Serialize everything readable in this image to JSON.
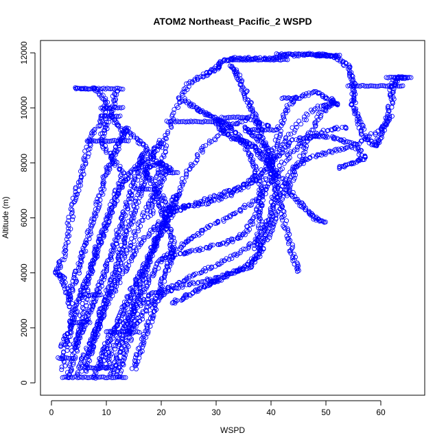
{
  "chart_data": {
    "type": "scatter",
    "title": "ATOM2 Northeast_Pacific_2 WSPD",
    "xlabel": "WSPD",
    "ylabel": "Altitude (m)",
    "xlim": [
      -2,
      68
    ],
    "ylim": [
      -450,
      12450
    ],
    "x_ticks": [
      0,
      10,
      20,
      30,
      40,
      50,
      60
    ],
    "y_ticks": [
      0,
      2000,
      4000,
      6000,
      8000,
      10000,
      12000
    ],
    "grid": false,
    "legend": "none",
    "marker": "open-circle",
    "color": "#0000ff",
    "traces": [
      [
        [
          3,
          200
        ],
        [
          4,
          900
        ],
        [
          5,
          1800
        ],
        [
          6,
          2800
        ],
        [
          7,
          3800
        ],
        [
          8,
          4800
        ],
        [
          10,
          5800
        ],
        [
          12,
          6800
        ],
        [
          13,
          7600
        ],
        [
          11,
          8200
        ],
        [
          9,
          8800
        ],
        [
          10,
          9400
        ],
        [
          11,
          10000
        ],
        [
          12,
          10700
        ]
      ],
      [
        [
          5,
          300
        ],
        [
          6,
          1000
        ],
        [
          8,
          1800
        ],
        [
          9,
          2600
        ],
        [
          11,
          3500
        ],
        [
          13,
          4400
        ],
        [
          15,
          5300
        ],
        [
          17,
          6200
        ],
        [
          19,
          7000
        ],
        [
          21,
          7700
        ],
        [
          18,
          8300
        ],
        [
          16,
          8800
        ],
        [
          13,
          9200
        ],
        [
          11,
          9700
        ]
      ],
      [
        [
          2,
          500
        ],
        [
          3,
          1500
        ],
        [
          4,
          2500
        ],
        [
          3,
          3200
        ],
        [
          2,
          3800
        ],
        [
          1,
          4000
        ],
        [
          2,
          4500
        ],
        [
          3,
          5500
        ],
        [
          4,
          6500
        ],
        [
          5,
          7200
        ],
        [
          6,
          8000
        ],
        [
          7,
          8800
        ],
        [
          9,
          9500
        ],
        [
          10,
          10200
        ],
        [
          8,
          10700
        ],
        [
          4,
          10700
        ]
      ],
      [
        [
          8,
          200
        ],
        [
          9,
          900
        ],
        [
          11,
          1700
        ],
        [
          13,
          2600
        ],
        [
          15,
          3500
        ],
        [
          17,
          4300
        ],
        [
          19,
          5200
        ],
        [
          21,
          6000
        ],
        [
          23,
          6900
        ],
        [
          25,
          7800
        ],
        [
          28,
          8600
        ],
        [
          32,
          9300
        ],
        [
          36,
          9600
        ],
        [
          40,
          9300
        ]
      ],
      [
        [
          9,
          600
        ],
        [
          10,
          1400
        ],
        [
          12,
          2200
        ],
        [
          14,
          3000
        ],
        [
          16,
          3800
        ],
        [
          18,
          4600
        ],
        [
          20,
          5400
        ],
        [
          22,
          6200
        ],
        [
          20,
          6800
        ],
        [
          18,
          7400
        ],
        [
          17,
          7800
        ],
        [
          20,
          8000
        ],
        [
          22,
          7700
        ]
      ],
      [
        [
          12,
          200
        ],
        [
          13,
          800
        ],
        [
          14,
          1500
        ],
        [
          15,
          2300
        ],
        [
          16,
          3100
        ],
        [
          18,
          3800
        ],
        [
          20,
          4500
        ],
        [
          23,
          4900
        ],
        [
          26,
          5300
        ],
        [
          29,
          5700
        ],
        [
          33,
          6100
        ],
        [
          37,
          6600
        ],
        [
          40,
          7300
        ],
        [
          43,
          8200
        ],
        [
          46,
          8800
        ],
        [
          50,
          9200
        ],
        [
          54,
          9300
        ]
      ],
      [
        [
          6,
          400
        ],
        [
          7,
          1100
        ],
        [
          8,
          1900
        ],
        [
          10,
          2700
        ],
        [
          12,
          3600
        ],
        [
          14,
          4400
        ],
        [
          16,
          5100
        ],
        [
          19,
          5700
        ],
        [
          22,
          6200
        ],
        [
          26,
          6500
        ],
        [
          30,
          6800
        ],
        [
          34,
          7100
        ],
        [
          38,
          7600
        ],
        [
          41,
          8300
        ],
        [
          44,
          9200
        ],
        [
          48,
          10000
        ],
        [
          52,
          10200
        ]
      ],
      [
        [
          10,
          500
        ],
        [
          11,
          1200
        ],
        [
          13,
          2000
        ],
        [
          15,
          2700
        ],
        [
          18,
          3200
        ],
        [
          22,
          3500
        ],
        [
          26,
          3900
        ],
        [
          30,
          4300
        ],
        [
          34,
          4700
        ],
        [
          38,
          5300
        ],
        [
          40,
          6000
        ],
        [
          42,
          7000
        ],
        [
          44,
          7800
        ],
        [
          47,
          8200
        ],
        [
          51,
          8400
        ],
        [
          55,
          8600
        ],
        [
          60,
          9200
        ],
        [
          62,
          9700
        ]
      ],
      [
        [
          14,
          1800
        ],
        [
          16,
          2300
        ],
        [
          18,
          2900
        ],
        [
          21,
          3300
        ],
        [
          25,
          3600
        ],
        [
          30,
          3800
        ],
        [
          34,
          4100
        ],
        [
          37,
          4500
        ],
        [
          39,
          5200
        ],
        [
          41,
          6000
        ],
        [
          43,
          7000
        ],
        [
          45,
          8000
        ],
        [
          47,
          9000
        ],
        [
          49,
          9800
        ],
        [
          51,
          10200
        ]
      ],
      [
        [
          20,
          6300
        ],
        [
          24,
          6400
        ],
        [
          28,
          6500
        ],
        [
          32,
          6800
        ],
        [
          35,
          7100
        ],
        [
          38,
          7500
        ],
        [
          41,
          8200
        ],
        [
          44,
          8800
        ],
        [
          48,
          9000
        ],
        [
          52,
          8900
        ],
        [
          55,
          8700
        ],
        [
          57,
          8200
        ],
        [
          55,
          8000
        ],
        [
          52,
          7800
        ]
      ],
      [
        [
          20,
          4500
        ],
        [
          24,
          4700
        ],
        [
          28,
          4900
        ],
        [
          32,
          5100
        ],
        [
          35,
          5400
        ],
        [
          37,
          6000
        ],
        [
          39,
          7000
        ],
        [
          40,
          8000
        ],
        [
          41,
          8800
        ],
        [
          42,
          9600
        ],
        [
          44,
          10300
        ],
        [
          48,
          10600
        ],
        [
          51,
          10300
        ],
        [
          52,
          10100
        ]
      ],
      [
        [
          22,
          2900
        ],
        [
          25,
          3200
        ],
        [
          28,
          3500
        ],
        [
          30,
          3700
        ],
        [
          33,
          4000
        ],
        [
          36,
          4200
        ],
        [
          38,
          4700
        ],
        [
          39,
          5400
        ],
        [
          40,
          6300
        ],
        [
          41,
          7200
        ],
        [
          40,
          8000
        ],
        [
          39,
          8600
        ],
        [
          37,
          9000
        ],
        [
          35,
          9300
        ]
      ],
      [
        [
          18,
          6000
        ],
        [
          19,
          7000
        ],
        [
          20,
          8000
        ],
        [
          21,
          9000
        ],
        [
          23,
          10200
        ],
        [
          25,
          10900
        ],
        [
          28,
          11200
        ],
        [
          30,
          11400
        ],
        [
          31,
          11700
        ],
        [
          33,
          11800
        ],
        [
          36,
          11800
        ],
        [
          40,
          11800
        ],
        [
          43,
          11900
        ],
        [
          47,
          11950
        ],
        [
          50,
          11900
        ],
        [
          52,
          11850
        ],
        [
          54,
          11500
        ],
        [
          55,
          11000
        ],
        [
          55,
          10500
        ],
        [
          55,
          10000
        ],
        [
          56,
          9500
        ],
        [
          57,
          9000
        ],
        [
          59,
          8600
        ],
        [
          60,
          9000
        ],
        [
          61,
          9600
        ],
        [
          62,
          10300
        ],
        [
          62,
          10800
        ],
        [
          63,
          11100
        ],
        [
          65,
          11100
        ]
      ],
      [
        [
          33,
          11500
        ],
        [
          34,
          11200
        ],
        [
          35,
          10700
        ],
        [
          36,
          10200
        ],
        [
          37,
          9700
        ],
        [
          38,
          9200
        ],
        [
          39,
          8500
        ],
        [
          40,
          7800
        ],
        [
          41,
          7000
        ],
        [
          42,
          6200
        ],
        [
          43,
          5400
        ],
        [
          44,
          4600
        ],
        [
          45,
          4000
        ]
      ],
      [
        [
          30,
          9500
        ],
        [
          31,
          9200
        ],
        [
          33,
          8900
        ],
        [
          35,
          8800
        ],
        [
          37,
          8600
        ],
        [
          38,
          8300
        ],
        [
          40,
          7900
        ],
        [
          42,
          7400
        ],
        [
          44,
          6800
        ],
        [
          46,
          6400
        ],
        [
          48,
          6000
        ],
        [
          50,
          5800
        ]
      ],
      [
        [
          24,
          10300
        ],
        [
          26,
          10000
        ],
        [
          28,
          9800
        ],
        [
          30,
          9600
        ],
        [
          32,
          9400
        ],
        [
          34,
          9000
        ],
        [
          36,
          8400
        ],
        [
          37,
          7800
        ],
        [
          38,
          7100
        ],
        [
          38,
          6400
        ],
        [
          38,
          5600
        ],
        [
          37,
          4800
        ]
      ],
      [
        [
          2,
          1300
        ],
        [
          3,
          1800
        ],
        [
          4,
          2400
        ],
        [
          5,
          3000
        ],
        [
          6,
          3500
        ],
        [
          7,
          4000
        ],
        [
          8,
          4600
        ],
        [
          9,
          5200
        ],
        [
          10,
          5800
        ],
        [
          11,
          6400
        ],
        [
          12,
          7000
        ],
        [
          14,
          7500
        ],
        [
          16,
          8000
        ],
        [
          17,
          8400
        ]
      ],
      [
        [
          7,
          1000
        ],
        [
          8,
          1700
        ],
        [
          9,
          2400
        ],
        [
          10,
          3100
        ],
        [
          11,
          3800
        ],
        [
          12,
          4500
        ],
        [
          13,
          5000
        ],
        [
          14,
          5600
        ],
        [
          15,
          6200
        ],
        [
          16,
          6900
        ],
        [
          17,
          7500
        ],
        [
          18,
          8100
        ],
        [
          19,
          8500
        ],
        [
          20,
          8800
        ]
      ],
      [
        [
          11,
          300
        ],
        [
          12,
          900
        ],
        [
          13,
          1500
        ],
        [
          14,
          2100
        ],
        [
          15,
          2800
        ],
        [
          16,
          3400
        ],
        [
          17,
          4000
        ],
        [
          18,
          4600
        ],
        [
          19,
          5100
        ],
        [
          20,
          5600
        ],
        [
          21,
          6100
        ],
        [
          22,
          6500
        ],
        [
          23,
          6900
        ]
      ],
      [
        [
          4,
          1200
        ],
        [
          5,
          1700
        ],
        [
          6,
          2100
        ],
        [
          7,
          2600
        ],
        [
          8,
          3100
        ],
        [
          9,
          3600
        ],
        [
          10,
          4200
        ],
        [
          11,
          4800
        ],
        [
          12,
          5400
        ],
        [
          13,
          6000
        ],
        [
          14,
          6600
        ],
        [
          15,
          7200
        ],
        [
          16,
          7800
        ],
        [
          17,
          8200
        ]
      ],
      [
        [
          3,
          3000
        ],
        [
          4,
          3600
        ],
        [
          5,
          4200
        ],
        [
          6,
          4800
        ],
        [
          7,
          5500
        ],
        [
          8,
          6200
        ],
        [
          9,
          6900
        ],
        [
          10,
          7600
        ],
        [
          11,
          8100
        ],
        [
          12,
          8600
        ],
        [
          13,
          9000
        ],
        [
          14,
          9300
        ]
      ],
      [
        [
          15,
          500
        ],
        [
          16,
          1100
        ],
        [
          17,
          1700
        ],
        [
          18,
          2300
        ],
        [
          19,
          2900
        ],
        [
          20,
          3500
        ],
        [
          21,
          4100
        ],
        [
          22,
          4600
        ],
        [
          22,
          5200
        ],
        [
          21,
          5800
        ],
        [
          20,
          6400
        ],
        [
          19,
          7000
        ]
      ]
    ],
    "level_runs": [
      {
        "alt": 10700,
        "x": [
          4.5,
          13
        ]
      },
      {
        "alt": 10000,
        "x": [
          9,
          13
        ]
      },
      {
        "alt": 9700,
        "x": [
          9,
          12.5
        ]
      },
      {
        "alt": 8800,
        "x": [
          6.5,
          14
        ]
      },
      {
        "alt": 7650,
        "x": [
          19.5,
          23
        ]
      },
      {
        "alt": 7050,
        "x": [
          15.5,
          18
        ]
      },
      {
        "alt": 3200,
        "x": [
          5.5,
          9
        ]
      },
      {
        "alt": 2200,
        "x": [
          3.5,
          7
        ]
      },
      {
        "alt": 1850,
        "x": [
          10,
          16
        ]
      },
      {
        "alt": 900,
        "x": [
          1.2,
          4
        ]
      },
      {
        "alt": 550,
        "x": [
          6,
          11
        ]
      },
      {
        "alt": 200,
        "x": [
          2,
          13.5
        ]
      },
      {
        "alt": 11750,
        "x": [
          33,
          43
        ]
      },
      {
        "alt": 11950,
        "x": [
          41,
          50
        ]
      },
      {
        "alt": 11900,
        "x": [
          48,
          52.5
        ]
      },
      {
        "alt": 9500,
        "x": [
          21,
          32
        ]
      },
      {
        "alt": 9650,
        "x": [
          31,
          36
        ]
      },
      {
        "alt": 9200,
        "x": [
          36,
          41
        ]
      },
      {
        "alt": 10350,
        "x": [
          42,
          45
        ]
      },
      {
        "alt": 10800,
        "x": [
          54,
          64
        ]
      },
      {
        "alt": 11100,
        "x": [
          61,
          65.5
        ]
      },
      {
        "alt": 3700,
        "x": [
          29,
          30.5
        ]
      }
    ]
  }
}
